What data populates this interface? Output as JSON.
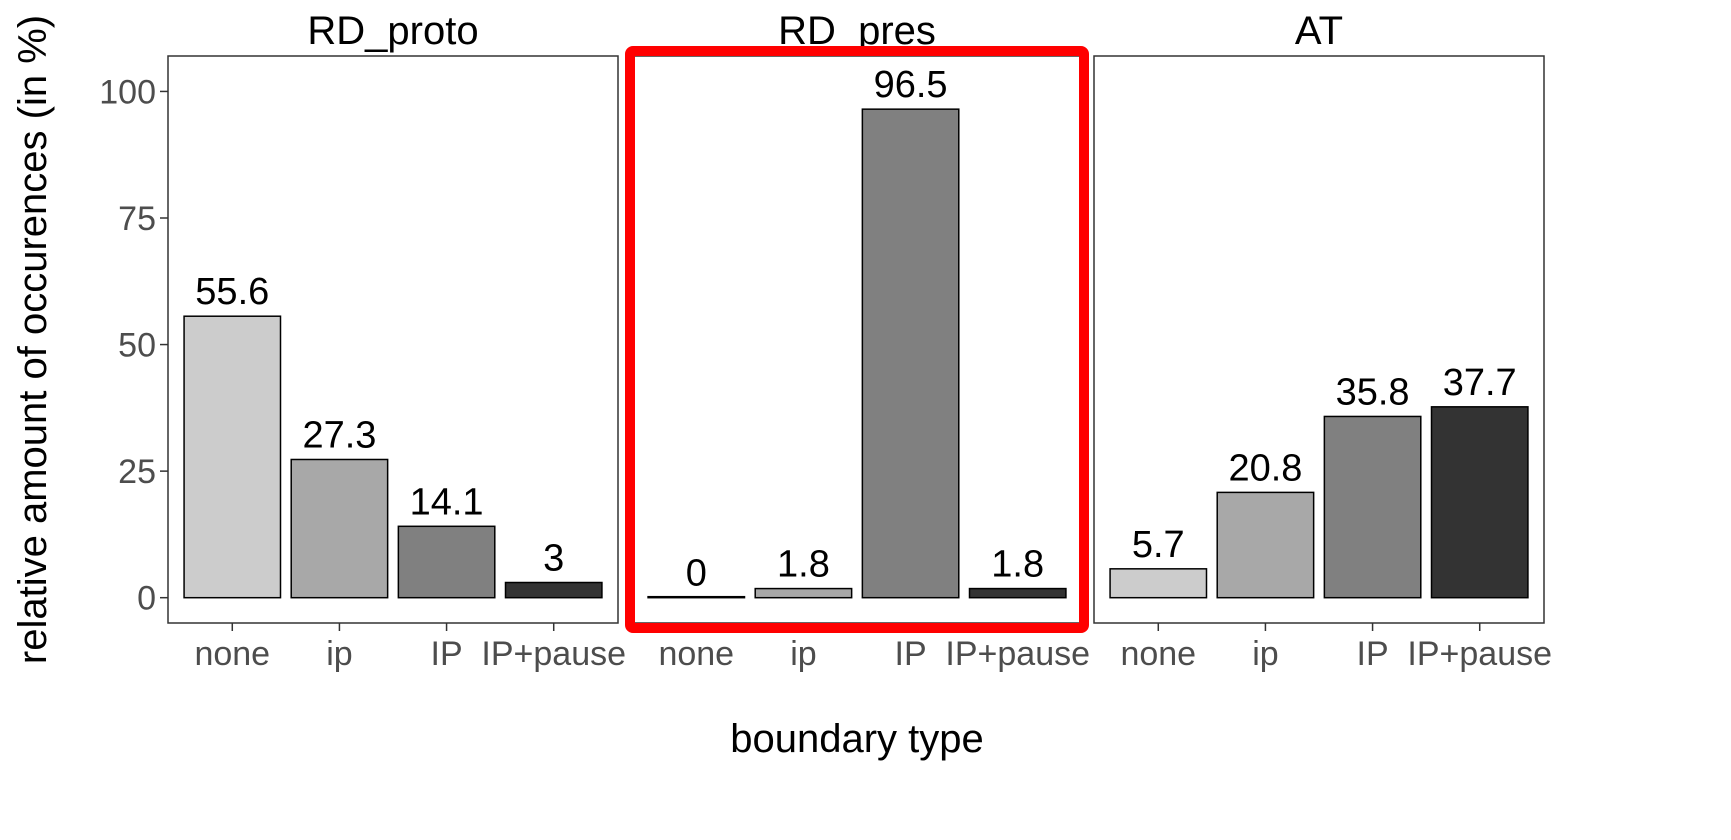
{
  "chart_data": {
    "type": "bar",
    "ylabel": "relative amount of occurences (in %)",
    "xlabel": "boundary type",
    "ylim": [
      -5,
      107
    ],
    "yticks": [
      0,
      25,
      50,
      75,
      100
    ],
    "categories": [
      "none",
      "ip",
      "IP",
      "IP+pause"
    ],
    "bar_colors": [
      "#cccccc",
      "#a8a8a8",
      "#808080",
      "#333333"
    ],
    "highlight_color": "#ff0000",
    "grid": false,
    "panels": [
      {
        "title": "RD_proto",
        "values": [
          55.6,
          27.3,
          14.1,
          3
        ],
        "labels": [
          "55.6",
          "27.3",
          "14.1",
          "3"
        ],
        "highlighted": false
      },
      {
        "title": "RD_pres",
        "values": [
          0,
          1.8,
          96.5,
          1.8
        ],
        "labels": [
          "0",
          "1.8",
          "96.5",
          "1.8"
        ],
        "highlighted": true
      },
      {
        "title": "AT",
        "values": [
          5.7,
          20.8,
          35.8,
          37.7
        ],
        "labels": [
          "5.7",
          "20.8",
          "35.8",
          "37.7"
        ],
        "highlighted": false
      }
    ]
  }
}
